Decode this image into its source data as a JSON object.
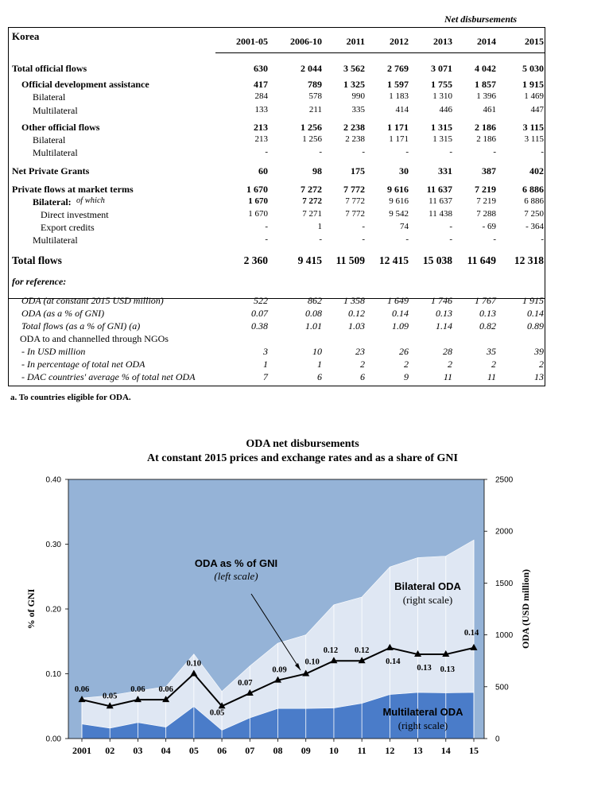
{
  "table": {
    "unit_note": "Net disbursements",
    "country": "Korea",
    "columns": [
      "2001-05",
      "2006-10",
      "2011",
      "2012",
      "2013",
      "2014",
      "2015"
    ],
    "rows": [
      {
        "label": "Total official flows",
        "style": "bold",
        "values": [
          "630",
          "2 044",
          "3 562",
          "2 769",
          "3 071",
          "4 042",
          "5 030"
        ]
      },
      {
        "label": "Official development assistance",
        "style": "sub-bold",
        "values": [
          "417",
          "789",
          "1 325",
          "1 597",
          "1 755",
          "1 857",
          "1 915"
        ]
      },
      {
        "label": "Bilateral",
        "style": "sub2",
        "values": [
          "284",
          "578",
          "990",
          "1 183",
          "1 310",
          "1 396",
          "1 469"
        ]
      },
      {
        "label": "Multilateral",
        "style": "sub2",
        "values": [
          "133",
          "211",
          "335",
          "414",
          "446",
          "461",
          "447"
        ]
      },
      {
        "label": "Other official flows",
        "style": "sub-bold",
        "values": [
          "213",
          "1 256",
          "2 238",
          "1 171",
          "1 315",
          "2 186",
          "3 115"
        ]
      },
      {
        "label": "Bilateral",
        "style": "sub2",
        "values": [
          "213",
          "1 256",
          "2 238",
          "1 171",
          "1 315",
          "2 186",
          "3 115"
        ]
      },
      {
        "label": "Multilateral",
        "style": "sub2",
        "values": [
          "-",
          "-",
          "-",
          "-",
          "-",
          "-",
          "-"
        ]
      },
      {
        "label": "Net Private Grants",
        "style": "bold",
        "values": [
          "60",
          "98",
          "175",
          "30",
          "331",
          "387",
          "402"
        ]
      },
      {
        "label": "Private flows at market terms",
        "style": "bold",
        "values": [
          "1 670",
          "7 272",
          "7 772",
          "9 616",
          "11 637",
          "7 219",
          "6 886"
        ]
      },
      {
        "label": "Bilateral:",
        "note": "of which",
        "style": "sub2-bold",
        "values": [
          "1 670",
          "7 272",
          "7 772",
          "9 616",
          "11 637",
          "7 219",
          "6 886"
        ]
      },
      {
        "label": "Direct investment",
        "style": "sub3",
        "values": [
          "1 670",
          "7 271",
          "7 772",
          "9 542",
          "11 438",
          "7 288",
          "7 250"
        ]
      },
      {
        "label": "Export credits",
        "style": "sub3",
        "values": [
          "-",
          "1",
          "-",
          "74",
          "-",
          "- 69",
          "- 364"
        ]
      },
      {
        "label": "Multilateral",
        "style": "sub2",
        "values": [
          "-",
          "-",
          "-",
          "-",
          "-",
          "-",
          "-"
        ]
      },
      {
        "label": "Total flows",
        "style": "big",
        "values": [
          "2 360",
          "9 415",
          "11 509",
          "12 415",
          "15 038",
          "11 649",
          "12 318"
        ]
      },
      {
        "label": "for reference:",
        "style": "ref-head",
        "values": []
      },
      {
        "label": "ODA (at constant 2015 USD million)",
        "style": "ref",
        "values": [
          "522",
          "862",
          "1 358",
          "1 649",
          "1 746",
          "1 767",
          "1 915"
        ]
      },
      {
        "label": "ODA (as a % of GNI)",
        "style": "ref",
        "values": [
          "0.07",
          "0.08",
          "0.12",
          "0.14",
          "0.13",
          "0.13",
          "0.14"
        ]
      },
      {
        "label": "Total flows (as a % of GNI) (a)",
        "style": "ref",
        "values": [
          "0.38",
          "1.01",
          "1.03",
          "1.09",
          "1.14",
          "0.82",
          "0.89"
        ]
      },
      {
        "label": "ODA to and channelled through NGOs",
        "style": "ref-plain",
        "values": []
      },
      {
        "label": "- In USD million",
        "style": "ref",
        "values": [
          "3",
          "10",
          "23",
          "26",
          "28",
          "35",
          "39"
        ]
      },
      {
        "label": "- In percentage of total net ODA",
        "style": "ref",
        "values": [
          "1",
          "1",
          "2",
          "2",
          "2",
          "2",
          "2"
        ]
      },
      {
        "label": "- DAC countries' average % of total net ODA",
        "style": "ref",
        "values": [
          "7",
          "6",
          "6",
          "9",
          "11",
          "11",
          "13"
        ]
      }
    ],
    "footnote": "a. To countries eligible for ODA."
  },
  "chart_data": {
    "type": "area",
    "title": "ODA net disbursements",
    "subtitle": "At constant 2015 prices and exchange rates and as a share of GNI",
    "x": [
      "2001",
      "02",
      "03",
      "04",
      "05",
      "06",
      "07",
      "08",
      "09",
      "10",
      "11",
      "12",
      "13",
      "14",
      "15"
    ],
    "ylabel_left": "% of GNI",
    "ylabel_right": "ODA (USD million)",
    "ylim_left": [
      0,
      0.4
    ],
    "ylim_right": [
      0,
      2500
    ],
    "yticks_left": [
      "0.00",
      "0.10",
      "0.20",
      "0.30",
      "0.40"
    ],
    "yticks_right": [
      "0",
      "500",
      "1000",
      "1500",
      "2000",
      "2500"
    ],
    "series": [
      {
        "name": "Multilateral ODA",
        "axis": "right",
        "kind": "area",
        "color": "#4a7cc9",
        "values": [
          140,
          100,
          155,
          110,
          310,
          80,
          200,
          290,
          290,
          295,
          340,
          425,
          445,
          440,
          445
        ]
      },
      {
        "name": "Bilateral ODA",
        "axis": "right",
        "kind": "area",
        "color": "#dfe7f3",
        "values": [
          390,
          415,
          460,
          500,
          815,
          455,
          700,
          920,
          1000,
          1290,
          1365,
          1655,
          1745,
          1760,
          1915
        ]
      },
      {
        "name": "ODA as % of GNI",
        "axis": "left",
        "kind": "line",
        "color": "#000000",
        "values": [
          0.06,
          0.05,
          0.06,
          0.06,
          0.1,
          0.05,
          0.07,
          0.09,
          0.1,
          0.12,
          0.12,
          0.14,
          0.13,
          0.13,
          0.14
        ]
      }
    ],
    "data_labels": [
      "0.06",
      "0.05",
      "0.06",
      "0.06",
      "0.10",
      "0.05",
      "0.07",
      "0.09",
      "0.10",
      "0.12",
      "0.12",
      "0.14",
      "0.13",
      "0.13",
      "0.14"
    ],
    "annotations": {
      "gni_line": [
        "ODA as % of GNI",
        "(left scale)"
      ],
      "bilateral": [
        "Bilateral ODA",
        "(right scale)"
      ],
      "multilateral": [
        "Multilateral ODA",
        "(right scale)"
      ]
    },
    "colors": {
      "plot_background": "#95b3d7",
      "bilateral": "#dfe7f3",
      "multilateral": "#4a7cc9",
      "line": "#000000"
    }
  }
}
